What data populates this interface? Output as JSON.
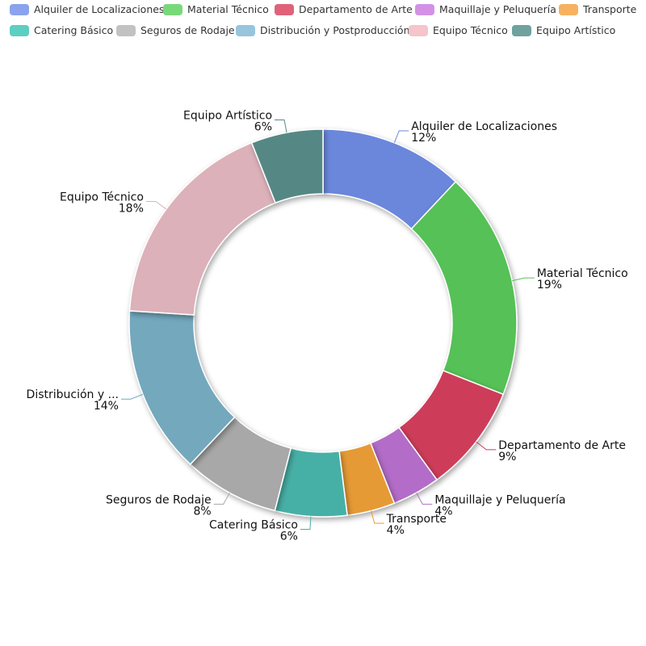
{
  "chart_data": {
    "type": "pie",
    "donut": true,
    "categories": [
      "Alquiler de Localizaciones",
      "Material Técnico",
      "Departamento de Arte",
      "Maquillaje y Peluquería",
      "Transporte",
      "Catering Básico",
      "Seguros de Rodaje",
      "Distribución y Postproducción",
      "Equipo Técnico",
      "Equipo Artístico"
    ],
    "values": [
      12,
      19,
      9,
      4,
      4,
      6,
      8,
      14,
      18,
      6
    ],
    "percent_labels": [
      "12%",
      "19%",
      "9%",
      "4%",
      "4%",
      "6%",
      "8%",
      "14%",
      "18%",
      "6%"
    ],
    "slice_labels": [
      "Alquiler de Localizaciones",
      "Material Técnico",
      "Departamento de Arte",
      "Maquillaje y Peluquería",
      "Transporte",
      "Catering Básico",
      "Seguros de Rodaje",
      "Distribución y ...",
      "Equipo Técnico",
      "Equipo Artístico"
    ],
    "colors": [
      "#6b87db",
      "#55c157",
      "#cd3c5a",
      "#b36cc8",
      "#e69a36",
      "#46b0a6",
      "#a8a8a8",
      "#73a8bd",
      "#dcb1b9",
      "#548885"
    ],
    "legend_colors": [
      "#8aa3ec",
      "#79d97a",
      "#e0627a",
      "#d391e6",
      "#f6b261",
      "#5ccfc2",
      "#c2c2c2",
      "#96c5dd",
      "#f4c5cb",
      "#6fa19e"
    ],
    "legend_position": "top"
  }
}
